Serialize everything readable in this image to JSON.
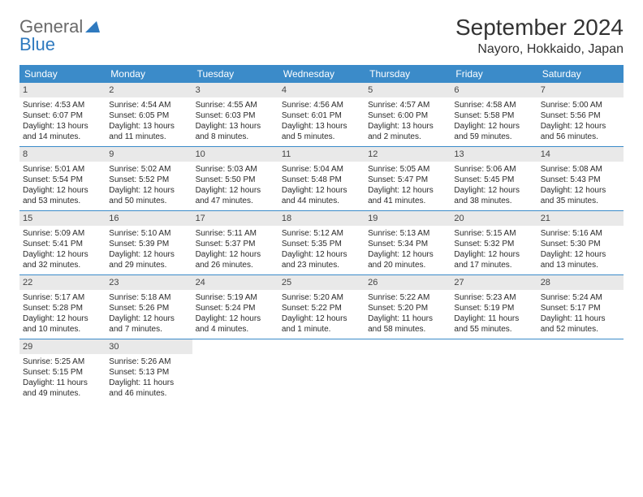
{
  "logo": {
    "line1": "General",
    "line2": "Blue"
  },
  "title": "September 2024",
  "location": "Nayoro, Hokkaido, Japan",
  "colors": {
    "header_bg": "#3b8bc9",
    "header_text": "#ffffff",
    "daynum_bg": "#e9e9e9",
    "week_border": "#3b8bc9",
    "logo_gray": "#6a6a6a",
    "logo_blue": "#2f7abf"
  },
  "dayNames": [
    "Sunday",
    "Monday",
    "Tuesday",
    "Wednesday",
    "Thursday",
    "Friday",
    "Saturday"
  ],
  "startOffset": 0,
  "days": [
    {
      "n": 1,
      "sunrise": "4:53 AM",
      "sunset": "6:07 PM",
      "dl": "13 hours and 14 minutes."
    },
    {
      "n": 2,
      "sunrise": "4:54 AM",
      "sunset": "6:05 PM",
      "dl": "13 hours and 11 minutes."
    },
    {
      "n": 3,
      "sunrise": "4:55 AM",
      "sunset": "6:03 PM",
      "dl": "13 hours and 8 minutes."
    },
    {
      "n": 4,
      "sunrise": "4:56 AM",
      "sunset": "6:01 PM",
      "dl": "13 hours and 5 minutes."
    },
    {
      "n": 5,
      "sunrise": "4:57 AM",
      "sunset": "6:00 PM",
      "dl": "13 hours and 2 minutes."
    },
    {
      "n": 6,
      "sunrise": "4:58 AM",
      "sunset": "5:58 PM",
      "dl": "12 hours and 59 minutes."
    },
    {
      "n": 7,
      "sunrise": "5:00 AM",
      "sunset": "5:56 PM",
      "dl": "12 hours and 56 minutes."
    },
    {
      "n": 8,
      "sunrise": "5:01 AM",
      "sunset": "5:54 PM",
      "dl": "12 hours and 53 minutes."
    },
    {
      "n": 9,
      "sunrise": "5:02 AM",
      "sunset": "5:52 PM",
      "dl": "12 hours and 50 minutes."
    },
    {
      "n": 10,
      "sunrise": "5:03 AM",
      "sunset": "5:50 PM",
      "dl": "12 hours and 47 minutes."
    },
    {
      "n": 11,
      "sunrise": "5:04 AM",
      "sunset": "5:48 PM",
      "dl": "12 hours and 44 minutes."
    },
    {
      "n": 12,
      "sunrise": "5:05 AM",
      "sunset": "5:47 PM",
      "dl": "12 hours and 41 minutes."
    },
    {
      "n": 13,
      "sunrise": "5:06 AM",
      "sunset": "5:45 PM",
      "dl": "12 hours and 38 minutes."
    },
    {
      "n": 14,
      "sunrise": "5:08 AM",
      "sunset": "5:43 PM",
      "dl": "12 hours and 35 minutes."
    },
    {
      "n": 15,
      "sunrise": "5:09 AM",
      "sunset": "5:41 PM",
      "dl": "12 hours and 32 minutes."
    },
    {
      "n": 16,
      "sunrise": "5:10 AM",
      "sunset": "5:39 PM",
      "dl": "12 hours and 29 minutes."
    },
    {
      "n": 17,
      "sunrise": "5:11 AM",
      "sunset": "5:37 PM",
      "dl": "12 hours and 26 minutes."
    },
    {
      "n": 18,
      "sunrise": "5:12 AM",
      "sunset": "5:35 PM",
      "dl": "12 hours and 23 minutes."
    },
    {
      "n": 19,
      "sunrise": "5:13 AM",
      "sunset": "5:34 PM",
      "dl": "12 hours and 20 minutes."
    },
    {
      "n": 20,
      "sunrise": "5:15 AM",
      "sunset": "5:32 PM",
      "dl": "12 hours and 17 minutes."
    },
    {
      "n": 21,
      "sunrise": "5:16 AM",
      "sunset": "5:30 PM",
      "dl": "12 hours and 13 minutes."
    },
    {
      "n": 22,
      "sunrise": "5:17 AM",
      "sunset": "5:28 PM",
      "dl": "12 hours and 10 minutes."
    },
    {
      "n": 23,
      "sunrise": "5:18 AM",
      "sunset": "5:26 PM",
      "dl": "12 hours and 7 minutes."
    },
    {
      "n": 24,
      "sunrise": "5:19 AM",
      "sunset": "5:24 PM",
      "dl": "12 hours and 4 minutes."
    },
    {
      "n": 25,
      "sunrise": "5:20 AM",
      "sunset": "5:22 PM",
      "dl": "12 hours and 1 minute."
    },
    {
      "n": 26,
      "sunrise": "5:22 AM",
      "sunset": "5:20 PM",
      "dl": "11 hours and 58 minutes."
    },
    {
      "n": 27,
      "sunrise": "5:23 AM",
      "sunset": "5:19 PM",
      "dl": "11 hours and 55 minutes."
    },
    {
      "n": 28,
      "sunrise": "5:24 AM",
      "sunset": "5:17 PM",
      "dl": "11 hours and 52 minutes."
    },
    {
      "n": 29,
      "sunrise": "5:25 AM",
      "sunset": "5:15 PM",
      "dl": "11 hours and 49 minutes."
    },
    {
      "n": 30,
      "sunrise": "5:26 AM",
      "sunset": "5:13 PM",
      "dl": "11 hours and 46 minutes."
    }
  ],
  "labels": {
    "sunrise": "Sunrise:",
    "sunset": "Sunset:",
    "daylight": "Daylight:"
  }
}
